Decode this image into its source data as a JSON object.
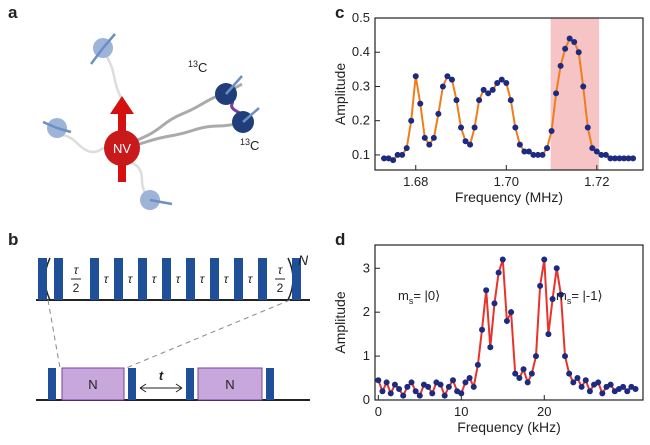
{
  "panels": {
    "a": "a",
    "b": "b",
    "c": "c",
    "d": "d"
  },
  "diagram_a": {
    "nv": "NV",
    "isotopes": [
      {
        "mass": "13",
        "element": "C"
      },
      {
        "mass": "13",
        "element": "C"
      }
    ]
  },
  "diagram_b": {
    "half": {
      "num": "τ",
      "den": "2"
    },
    "tau": "τ",
    "repeat": "N",
    "block": "N",
    "gap": "t"
  },
  "chart_data": [
    {
      "type": "line",
      "x": [
        1.673,
        1.674,
        1.675,
        1.676,
        1.677,
        1.678,
        1.679,
        1.68,
        1.681,
        1.682,
        1.683,
        1.684,
        1.685,
        1.686,
        1.687,
        1.688,
        1.689,
        1.69,
        1.691,
        1.692,
        1.693,
        1.694,
        1.695,
        1.696,
        1.697,
        1.698,
        1.699,
        1.7,
        1.701,
        1.702,
        1.703,
        1.704,
        1.705,
        1.706,
        1.707,
        1.708,
        1.709,
        1.71,
        1.711,
        1.712,
        1.713,
        1.714,
        1.715,
        1.716,
        1.717,
        1.718,
        1.719,
        1.72,
        1.721,
        1.722,
        1.723,
        1.724,
        1.725,
        1.726,
        1.727,
        1.728
      ],
      "values": [
        0.09,
        0.09,
        0.085,
        0.1,
        0.1,
        0.12,
        0.2,
        0.33,
        0.25,
        0.15,
        0.13,
        0.15,
        0.22,
        0.3,
        0.33,
        0.32,
        0.26,
        0.18,
        0.14,
        0.13,
        0.18,
        0.26,
        0.29,
        0.28,
        0.29,
        0.31,
        0.32,
        0.31,
        0.26,
        0.18,
        0.13,
        0.11,
        0.11,
        0.1,
        0.1,
        0.1,
        0.12,
        0.17,
        0.28,
        0.36,
        0.41,
        0.44,
        0.43,
        0.4,
        0.3,
        0.18,
        0.12,
        0.11,
        0.1,
        0.1,
        0.09,
        0.09,
        0.09,
        0.09,
        0.09,
        0.09
      ],
      "xlim": [
        1.671,
        1.7302
      ],
      "ylim": [
        0.056,
        0.5
      ],
      "xticks": [
        1.68,
        {
          "value": 1.7,
          "label": "1.70"
        },
        1.72
      ],
      "yticks": [
        0.1,
        0.2,
        0.3,
        0.4,
        0.5
      ],
      "xlabel": "Frequency (MHz)",
      "ylabel": "Amplitude",
      "line_color": "#f07d1a",
      "marker_color": "#1c2a80",
      "highlight": {
        "range": [
          1.7098,
          1.7205
        ],
        "color": "#f6c4c4"
      }
    },
    {
      "type": "line",
      "x": [
        0,
        0.5,
        1,
        1.5,
        2,
        2.5,
        3,
        3.5,
        4,
        4.5,
        5,
        5.5,
        6,
        6.5,
        7,
        7.5,
        8,
        8.5,
        9,
        9.5,
        10,
        10.5,
        11,
        11.5,
        12,
        12.5,
        13,
        13.5,
        14,
        14.5,
        15,
        15.5,
        16,
        16.5,
        17,
        17.5,
        18,
        18.5,
        19,
        19.5,
        20,
        20.5,
        21,
        21.5,
        22,
        22.5,
        23,
        23.5,
        24,
        24.5,
        25,
        25.5,
        26,
        26.5,
        27,
        27.5,
        28,
        28.5,
        29,
        29.5,
        30,
        30.5,
        31
      ],
      "values": [
        0.45,
        0.2,
        0.4,
        0.15,
        0.35,
        0.25,
        0.1,
        0.3,
        0.4,
        0.2,
        0.1,
        0.35,
        0.3,
        0.15,
        0.4,
        0.35,
        0.1,
        0.3,
        0.45,
        0.2,
        0.15,
        0.4,
        0.5,
        0.3,
        0.8,
        1.6,
        2.5,
        1.2,
        2.2,
        2.9,
        3.2,
        1.8,
        2.0,
        0.6,
        0.5,
        0.7,
        0.4,
        0.6,
        1.0,
        2.6,
        3.2,
        1.5,
        2.3,
        3.0,
        2.4,
        1.0,
        0.6,
        0.4,
        0.5,
        0.3,
        0.45,
        0.2,
        0.35,
        0.4,
        0.15,
        0.3,
        0.35,
        0.2,
        0.25,
        0.3,
        0.2,
        0.3,
        0.25
      ],
      "xlim": [
        -0.4,
        31.9
      ],
      "ylim": [
        0,
        3.53
      ],
      "xticks": [
        0,
        10,
        20
      ],
      "yticks": [
        0,
        1,
        2,
        3
      ],
      "xlabel": "Frequency (kHz)",
      "ylabel": "Amplitude",
      "line_color": "#e8332a",
      "marker_color": "#1c2a80",
      "annotations": [
        {
          "base": "m",
          "sub": "s",
          "state": "= |0⟩"
        },
        {
          "base": "m",
          "sub": "s",
          "state": "= |-1⟩"
        }
      ]
    }
  ]
}
